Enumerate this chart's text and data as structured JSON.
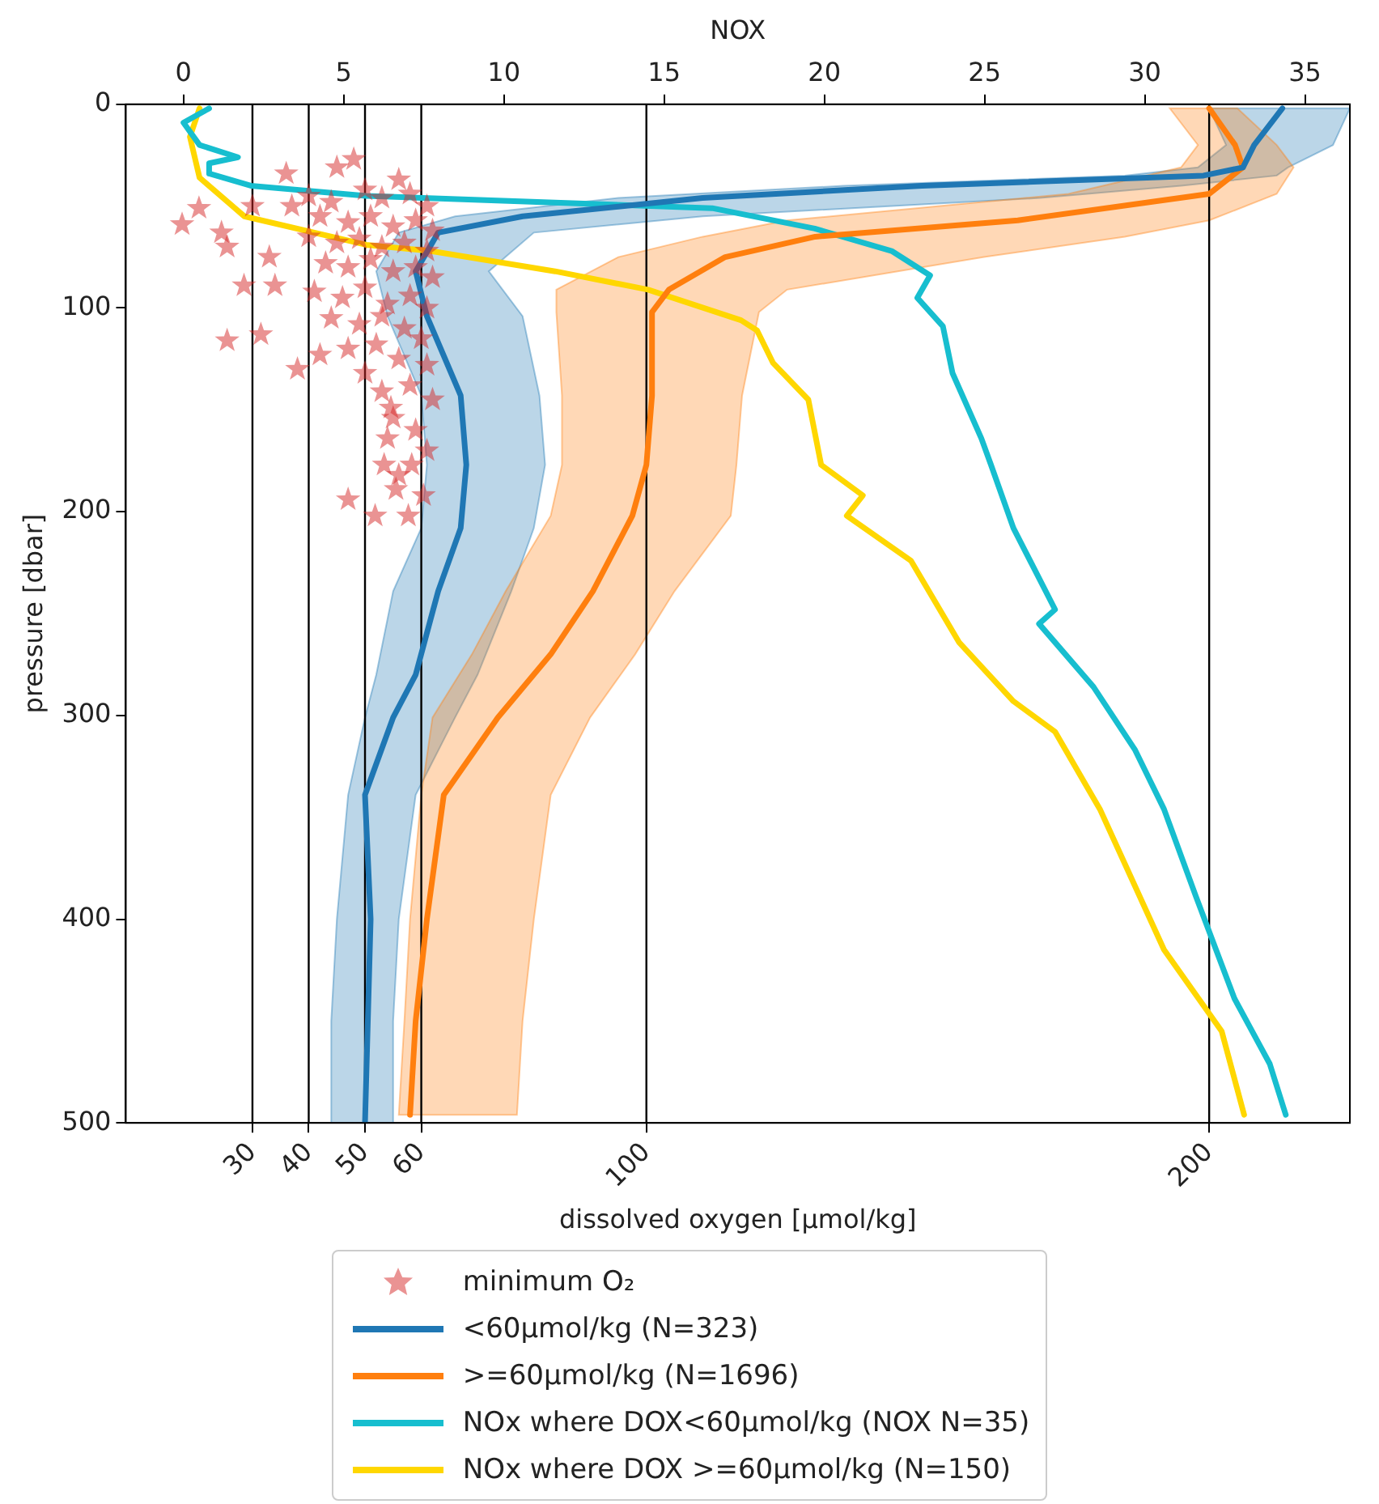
{
  "chart_data": {
    "type": "line",
    "orientation": "horizontal",
    "xlabel": "dissolved oxygen [µmol/kg]",
    "ylabel": "pressure [dbar]",
    "x2label": "NOX",
    "xlim": [
      7.5,
      225
    ],
    "xticks": [
      30,
      40,
      50,
      60,
      100,
      200
    ],
    "x2lim": [
      -1.8,
      36.4
    ],
    "x2ticks": [
      0,
      5,
      10,
      15,
      20,
      25,
      30,
      35
    ],
    "ylim": [
      500,
      0
    ],
    "yticks": [
      0,
      100,
      200,
      300,
      400,
      500
    ],
    "grid": false,
    "legend": "bottom",
    "ref_lines": [
      {
        "axis": "x",
        "value": 30,
        "color": "#000000"
      },
      {
        "axis": "x",
        "value": 40,
        "color": "#000000"
      },
      {
        "axis": "x",
        "value": 50,
        "color": "#000000"
      },
      {
        "axis": "x",
        "value": 60,
        "color": "#000000"
      },
      {
        "axis": "x",
        "value": 100,
        "color": "#000000"
      },
      {
        "axis": "x",
        "value": 200,
        "color": "#000000"
      }
    ],
    "series": [
      {
        "name": "minimum O₂",
        "type": "scatter",
        "marker": "star",
        "color": "#d62728",
        "x": [
          34,
          27,
          31,
          37,
          51,
          59,
          63,
          50,
          50,
          70,
          75,
          89,
          89,
          116,
          113,
          130,
          123,
          141,
          154,
          149,
          164,
          177,
          177,
          194,
          189,
          192,
          202,
          202,
          45,
          48,
          42,
          46,
          44,
          50,
          55,
          58,
          55,
          60,
          57,
          62,
          65,
          68,
          66,
          70,
          68,
          72,
          78,
          80,
          76,
          82,
          80,
          85,
          92,
          95,
          90,
          98,
          94,
          100,
          105,
          108,
          104,
          110,
          115,
          120,
          118,
          125,
          128,
          132,
          138,
          145,
          160,
          170,
          182
        ],
        "values": [
          36,
          48,
          45,
          56,
          20.5,
          17.5,
          24.5,
          37,
          30,
          25.5,
          33,
          28.5,
          34,
          25.5,
          31.5,
          38,
          42,
          53,
          55,
          54.6,
          54,
          53.4,
          58.3,
          47,
          55.5,
          60.4,
          51.8,
          57.7,
          40,
          44,
          50,
          53,
          58,
          61,
          42,
          47,
          51,
          55,
          59,
          62,
          40,
          45,
          49,
          53,
          57,
          61,
          43,
          47,
          51,
          55,
          59,
          62,
          41,
          46,
          50,
          54,
          58,
          61,
          44,
          49,
          53,
          57,
          60,
          47,
          52,
          56,
          61,
          50,
          58,
          62,
          59,
          61,
          56
        ]
      },
      {
        "name": "<60µmol/kg (N=323)",
        "color": "#1f77b4",
        "x": [
          2,
          20,
          31,
          35,
          40,
          46,
          55,
          63,
          82,
          104,
          143,
          177,
          208,
          239,
          280,
          301,
          339,
          400,
          450,
          500
        ],
        "values": [
          213,
          208,
          206,
          199,
          149,
          110,
          78,
          63,
          59,
          61,
          67,
          68,
          67,
          63,
          59,
          55,
          50,
          51,
          50.5,
          50
        ],
        "lower": [
          200,
          203,
          198,
          185,
          135,
          95,
          66,
          56,
          52,
          54,
          60,
          61,
          60,
          55,
          52,
          50,
          47,
          45,
          44,
          44
        ],
        "upper": [
          225,
          222,
          214,
          212,
          195,
          170,
          110,
          80,
          72,
          78,
          81,
          82,
          80,
          76,
          70,
          66,
          59,
          56,
          55,
          55
        ]
      },
      {
        "name": ">=60µmol/kg (N=1696)",
        "color": "#ff7f0e",
        "x": [
          2,
          20,
          31,
          44,
          57,
          65,
          75,
          91,
          102,
          143,
          177,
          202,
          239,
          270,
          301,
          339,
          400,
          450,
          496
        ],
        "values": [
          200,
          204.6,
          206,
          200,
          166,
          130,
          114,
          104,
          101,
          101,
          100,
          97.5,
          90.5,
          83,
          73.6,
          64,
          61,
          59,
          58
        ],
        "lower": [
          193,
          198,
          195,
          175,
          125,
          110,
          95,
          84,
          84,
          85,
          85,
          83,
          75,
          69,
          62,
          60,
          58,
          57,
          56
        ],
        "upper": [
          205,
          212,
          215,
          212,
          200,
          185,
          160,
          125,
          120,
          117,
          116,
          115,
          105,
          98,
          90,
          83,
          80,
          78,
          77
        ]
      },
      {
        "name": "NOx where DOX<60µmol/kg (NOX N=35)",
        "axis": "x2",
        "color": "#17becf",
        "x": [
          2,
          9,
          20,
          26,
          29,
          34,
          40,
          45,
          51,
          61,
          72,
          84,
          95,
          109,
          132,
          164,
          177,
          208,
          248,
          255,
          286,
          317,
          346,
          389,
          439,
          471,
          496
        ],
        "values": [
          0.8,
          0,
          0.5,
          1.7,
          0.8,
          0.8,
          2.1,
          5.7,
          16.5,
          19.7,
          22.1,
          23.3,
          22.9,
          23.7,
          24,
          24.9,
          25.2,
          25.9,
          27.2,
          26.7,
          28.4,
          29.7,
          30.6,
          31.6,
          32.8,
          33.9,
          34.4
        ]
      },
      {
        "name": "NOx where DOX >=60µmol/kg (N=150)",
        "axis": "x2",
        "color": "#ffd700",
        "x": [
          2,
          16,
          36,
          55,
          69,
          72,
          82,
          91,
          106,
          111,
          127,
          145,
          177,
          192,
          202,
          224,
          264,
          293,
          308,
          346,
          415,
          455,
          496
        ],
        "values": [
          0.5,
          0.2,
          0.5,
          1.9,
          5.7,
          7.7,
          11.6,
          14.5,
          17.4,
          17.9,
          18.4,
          19.5,
          19.9,
          21.2,
          20.7,
          22.7,
          24.2,
          25.9,
          27.2,
          28.6,
          30.6,
          32.4,
          33.1
        ]
      }
    ]
  }
}
